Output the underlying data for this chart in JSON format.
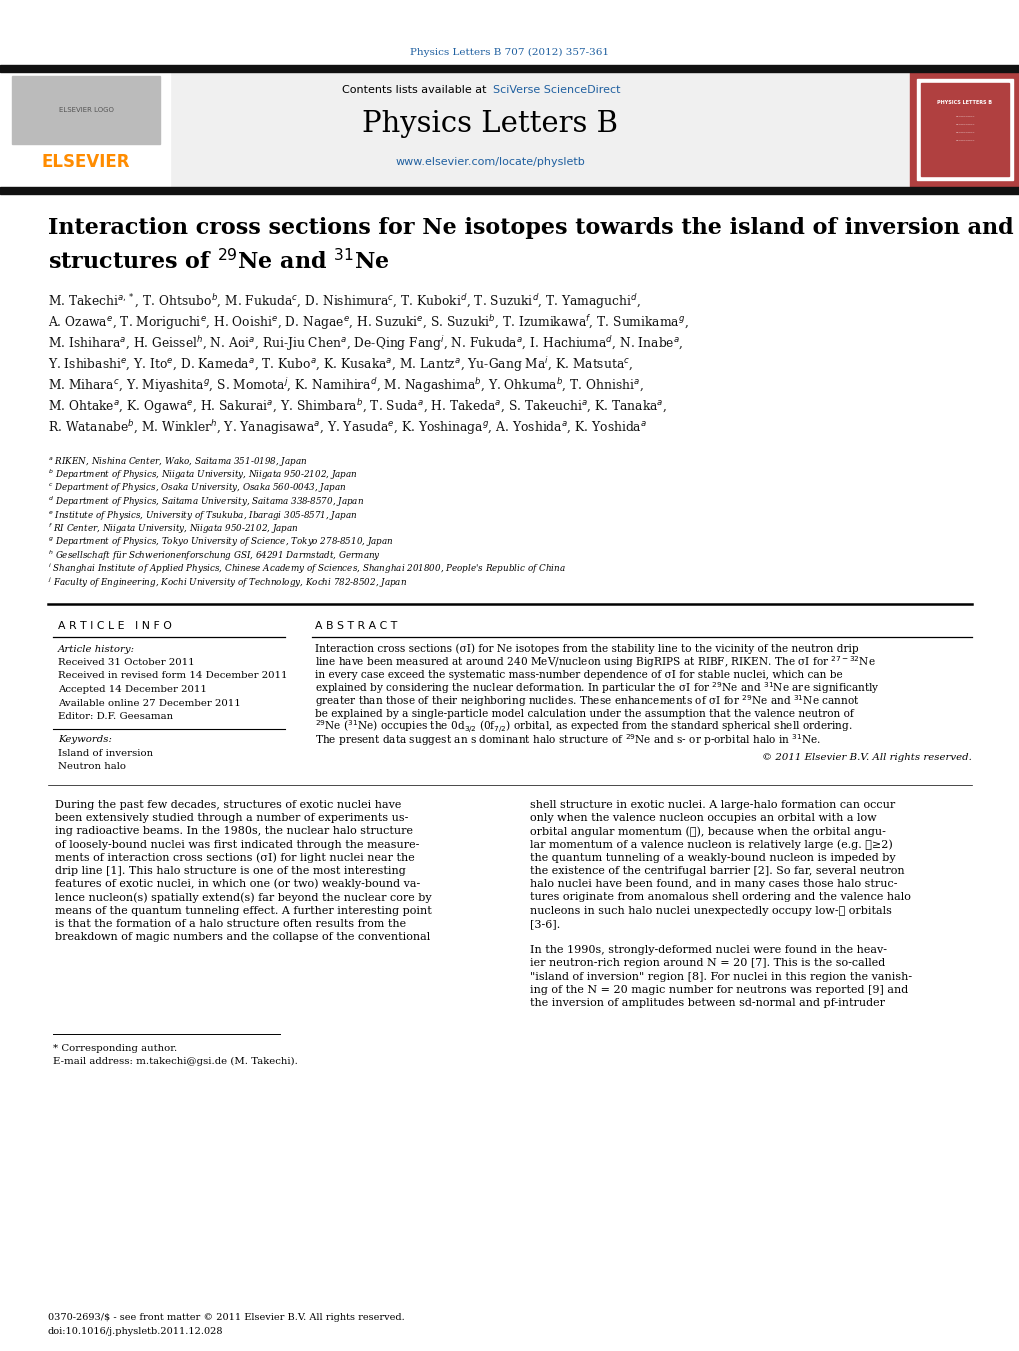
{
  "journal_ref": "Physics Letters B 707 (2012) 357-361",
  "journal_name": "Physics Letters B",
  "journal_url": "www.elsevier.com/locate/physletb",
  "contents_text": "Contents lists available at ",
  "sciverse_text": "SciVerse ScienceDirect",
  "title_line1": "Interaction cross sections for Ne isotopes towards the island of inversion and halo",
  "title_line2": "structures of $^{29}$Ne and $^{31}$Ne",
  "author_lines": [
    "M. Takechi$^{a,*}$, T. Ohtsubo$^{b}$, M. Fukuda$^{c}$, D. Nishimura$^{c}$, T. Kuboki$^{d}$, T. Suzuki$^{d}$, T. Yamaguchi$^{d}$,",
    "A. Ozawa$^{e}$, T. Moriguchi$^{e}$, H. Ooishi$^{e}$, D. Nagae$^{e}$, H. Suzuki$^{e}$, S. Suzuki$^{b}$, T. Izumikawa$^{f}$, T. Sumikama$^{g}$,",
    "M. Ishihara$^{a}$, H. Geissel$^{h}$, N. Aoi$^{a}$, Rui-Jiu Chen$^{a}$, De-Qing Fang$^{i}$, N. Fukuda$^{a}$, I. Hachiuma$^{d}$, N. Inabe$^{a}$,",
    "Y. Ishibashi$^{e}$, Y. Ito$^{e}$, D. Kameda$^{a}$, T. Kubo$^{a}$, K. Kusaka$^{a}$, M. Lantz$^{a}$, Yu-Gang Ma$^{i}$, K. Matsuta$^{c}$,",
    "M. Mihara$^{c}$, Y. Miyashita$^{g}$, S. Momota$^{j}$, K. Namihira$^{d}$, M. Nagashima$^{b}$, Y. Ohkuma$^{b}$, T. Ohnishi$^{a}$,",
    "M. Ohtake$^{a}$, K. Ogawa$^{e}$, H. Sakurai$^{a}$, Y. Shimbara$^{b}$, T. Suda$^{a}$, H. Takeda$^{a}$, S. Takeuchi$^{a}$, K. Tanaka$^{a}$,",
    "R. Watanabe$^{b}$, M. Winkler$^{h}$, Y. Yanagisawa$^{a}$, Y. Yasuda$^{e}$, K. Yoshinaga$^{g}$, A. Yoshida$^{a}$, K. Yoshida$^{a}$"
  ],
  "affiliations": [
    "$^{a}$ RIKEN, Nishina Center, Wako, Saitama 351-0198, Japan",
    "$^{b}$ Department of Physics, Niigata University, Niigata 950-2102, Japan",
    "$^{c}$ Department of Physics, Osaka University, Osaka 560-0043, Japan",
    "$^{d}$ Department of Physics, Saitama University, Saitama 338-8570, Japan",
    "$^{e}$ Institute of Physics, University of Tsukuba, Ibaragi 305-8571, Japan",
    "$^{f}$ RI Center, Niigata University, Niigata 950-2102, Japan",
    "$^{g}$ Department of Physics, Tokyo University of Science, Tokyo 278-8510, Japan",
    "$^{h}$ Gesellschaft für Schwerionenforschung GSI, 64291 Darmstadt, Germany",
    "$^{i}$ Shanghai Institute of Applied Physics, Chinese Academy of Sciences, Shanghai 201800, People's Republic of China",
    "$^{j}$ Faculty of Engineering, Kochi University of Technology, Kochi 782-8502, Japan"
  ],
  "article_info_label": "A R T I C L E   I N F O",
  "article_history_label": "Article history:",
  "received": "Received 31 October 2011",
  "received_revised": "Received in revised form 14 December 2011",
  "accepted": "Accepted 14 December 2011",
  "available_online": "Available online 27 December 2011",
  "editor": "Editor: D.F. Geesaman",
  "keywords_label": "Keywords:",
  "keyword1": "Island of inversion",
  "keyword2": "Neutron halo",
  "abstract_label": "A B S T R A C T",
  "abstract_lines": [
    "Interaction cross sections (σI) for Ne isotopes from the stability line to the vicinity of the neutron drip",
    "line have been measured at around 240 MeV/nucleon using BigRIPS at RIBF, RIKEN. The σI for $^{27-32}$Ne",
    "in every case exceed the systematic mass-number dependence of σI for stable nuclei, which can be",
    "explained by considering the nuclear deformation. In particular the σI for $^{29}$Ne and $^{31}$Ne are significantly",
    "greater than those of their neighboring nuclides. These enhancements of σI for $^{29}$Ne and $^{31}$Ne cannot",
    "be explained by a single-particle model calculation under the assumption that the valence neutron of",
    "$^{29}$Ne ($^{31}$Ne) occupies the 0d$_{3/2}$ (0f$_{7/2}$) orbital, as expected from the standard spherical shell ordering.",
    "The present data suggest an s dominant halo structure of $^{29}$Ne and s- or p-orbital halo in $^{31}$Ne."
  ],
  "copyright": "© 2011 Elsevier B.V. All rights reserved.",
  "body_col1_lines": [
    "During the past few decades, structures of exotic nuclei have",
    "been extensively studied through a number of experiments us-",
    "ing radioactive beams. In the 1980s, the nuclear halo structure",
    "of loosely-bound nuclei was first indicated through the measure-",
    "ments of interaction cross sections (σI) for light nuclei near the",
    "drip line [1]. This halo structure is one of the most interesting",
    "features of exotic nuclei, in which one (or two) weakly-bound va-",
    "lence nucleon(s) spatially extend(s) far beyond the nuclear core by",
    "means of the quantum tunneling effect. A further interesting point",
    "is that the formation of a halo structure often results from the",
    "breakdown of magic numbers and the collapse of the conventional"
  ],
  "body_col2_lines": [
    "shell structure in exotic nuclei. A large-halo formation can occur",
    "only when the valence nucleon occupies an orbital with a low",
    "orbital angular momentum (ℓ), because when the orbital angu-",
    "lar momentum of a valence nucleon is relatively large (e.g. ℓ≥2)",
    "the quantum tunneling of a weakly-bound nucleon is impeded by",
    "the existence of the centrifugal barrier [2]. So far, several neutron",
    "halo nuclei have been found, and in many cases those halo struc-",
    "tures originate from anomalous shell ordering and the valence halo",
    "nucleons in such halo nuclei unexpectedly occupy low-ℓ orbitals",
    "[3-6].",
    "",
    "In the 1990s, strongly-deformed nuclei were found in the heav-",
    "ier neutron-rich region around N = 20 [7]. This is the so-called",
    "\"island of inversion\" region [8]. For nuclei in this region the vanish-",
    "ing of the N = 20 magic number for neutrons was reported [9] and",
    "the inversion of amplitudes between sd-normal and pf-intruder"
  ],
  "footnote_lines": [
    "* Corresponding author.",
    "E-mail address: m.takechi@gsi.de (M. Takechi)."
  ],
  "footer_lines": [
    "0370-2693/$ - see front matter © 2011 Elsevier B.V. All rights reserved.",
    "doi:10.1016/j.physletb.2011.12.028"
  ],
  "elsevier_color": "#FF8C00",
  "blue_color": "#1a3a6b",
  "link_color": "#2060A0",
  "header_bg": "#f0f0f0",
  "red_cover_color": "#b04040",
  "dark_bar_color": "#111111"
}
